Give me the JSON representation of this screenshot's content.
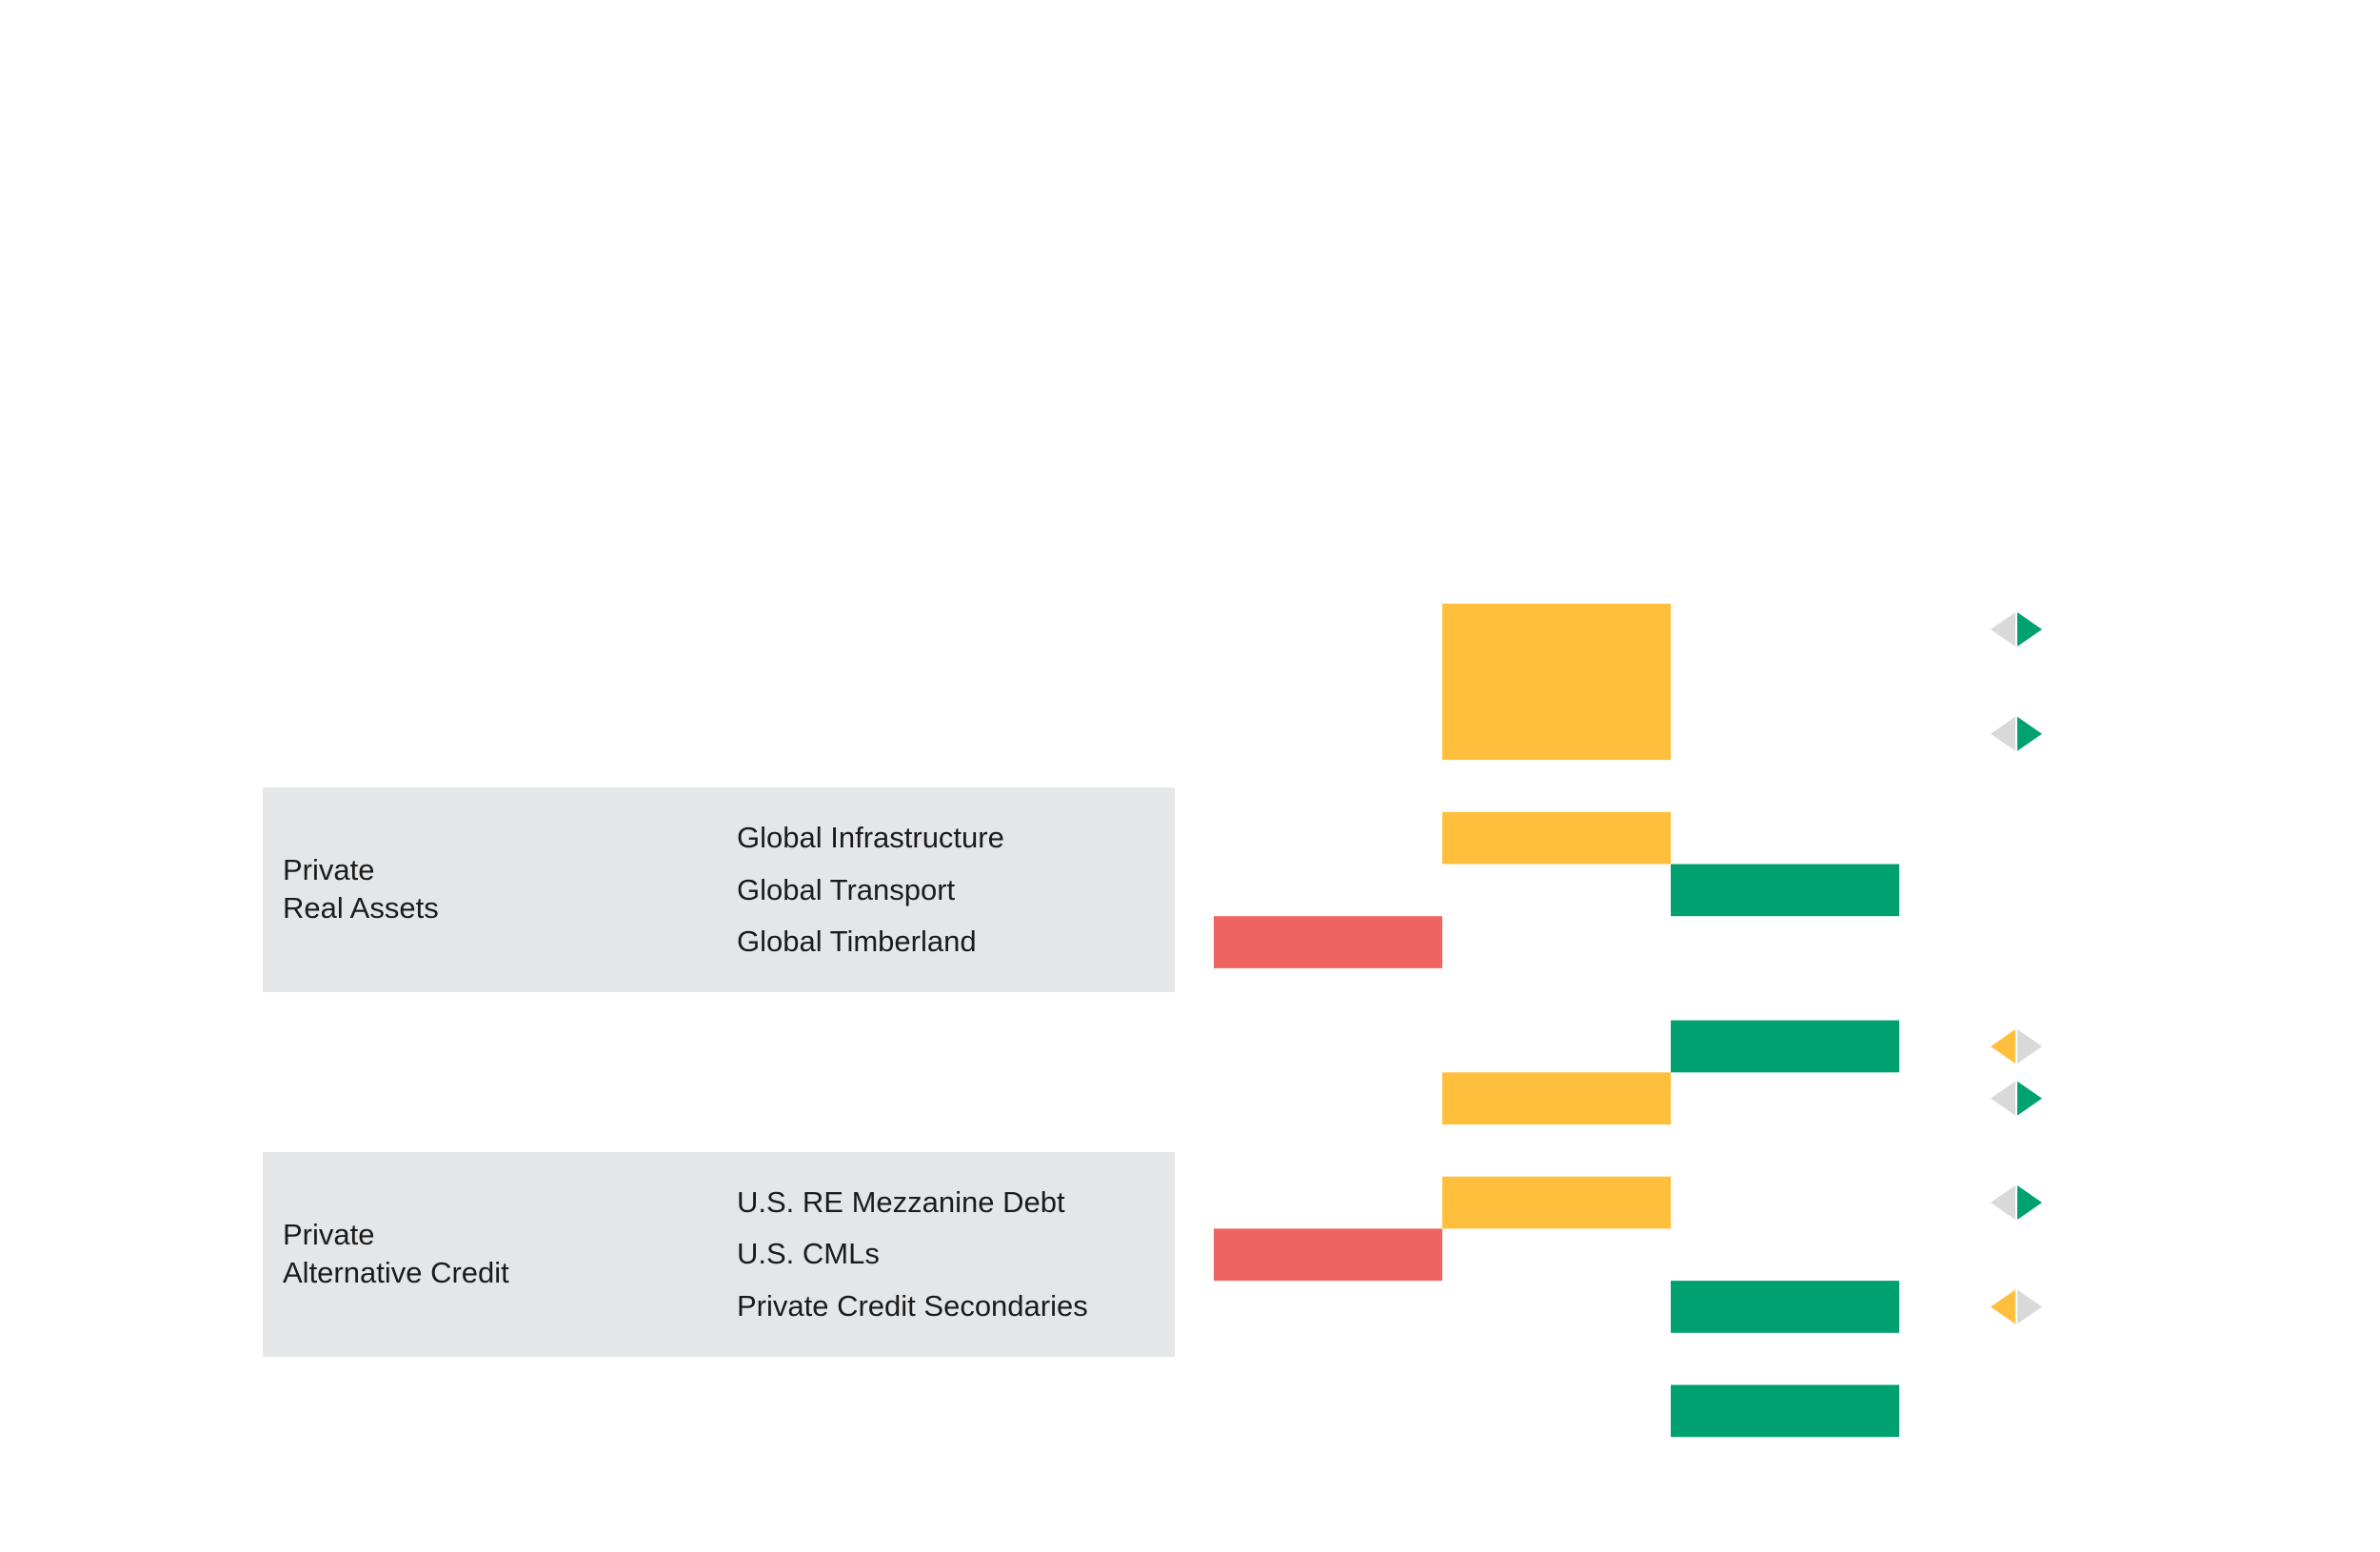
{
  "colors": {
    "negative": "#ef6461",
    "neutral": "#ffbe3b",
    "positive": "#00a170",
    "arrow_inactive": "#d9d9d9",
    "group_bg": "#e5e6e8"
  },
  "groups": [
    {
      "label_lines": [
        "Private",
        "Real Assets"
      ],
      "first_row": 4,
      "last_row": 6
    },
    {
      "label_lines": [
        "Private",
        "Alternative Credit"
      ],
      "first_row": 11,
      "last_row": 13
    }
  ],
  "chart_data": {
    "type": "bar",
    "levels": [
      "negative",
      "neutral",
      "positive"
    ],
    "rows": [
      {
        "label": "",
        "rating": 0,
        "block_rows": 3,
        "change": "up"
      },
      {
        "label": "",
        "rating": null,
        "change": null
      },
      {
        "label": "",
        "rating": null,
        "change": "up"
      },
      {
        "label": "",
        "rating": null,
        "change": null
      },
      {
        "label": "Global Infrastructure",
        "rating": 0,
        "change": null
      },
      {
        "label": "Global Transport",
        "rating": 1,
        "change": null
      },
      {
        "label": "Global Timberland",
        "rating": -1,
        "change": null
      },
      {
        "label": "",
        "rating": null,
        "change": null
      },
      {
        "label": "",
        "rating": 1,
        "change": "down"
      },
      {
        "label": "",
        "rating": 0,
        "change": "up"
      },
      {
        "label": "",
        "rating": null,
        "change": null
      },
      {
        "label": "U.S. RE Mezzanine Debt",
        "rating": 0,
        "change": "up"
      },
      {
        "label": "U.S. CMLs",
        "rating": -1,
        "change": null
      },
      {
        "label": "Private Credit Secondaries",
        "rating": 1,
        "change": "down"
      },
      {
        "label": "",
        "rating": null,
        "change": null
      },
      {
        "label": "",
        "rating": 1,
        "change": null
      }
    ]
  }
}
